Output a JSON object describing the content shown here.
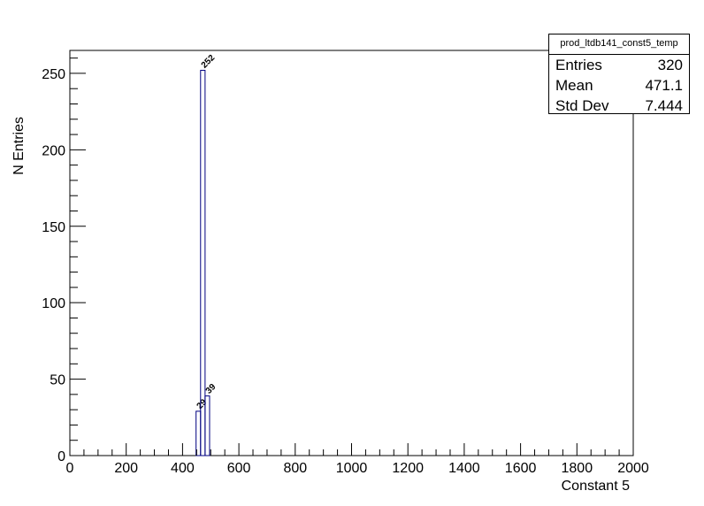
{
  "chart_data": {
    "type": "bar",
    "histogram": true,
    "bin_width": 16,
    "bins": [
      {
        "x_low": 448,
        "x_high": 464,
        "value": 29,
        "label": "29"
      },
      {
        "x_low": 464,
        "x_high": 480,
        "value": 252,
        "label": "252"
      },
      {
        "x_low": 480,
        "x_high": 496,
        "value": 39,
        "label": "39"
      }
    ],
    "xlabel": "Constant 5",
    "ylabel": "N Entries",
    "xlim": [
      0,
      2000
    ],
    "ylim": [
      0,
      265
    ],
    "x_ticks": [
      "0",
      "200",
      "400",
      "600",
      "800",
      "1000",
      "1200",
      "1400",
      "1600",
      "1800",
      "2000"
    ],
    "y_ticks": [
      "0",
      "50",
      "100",
      "150",
      "200",
      "250"
    ],
    "grid": false,
    "line_color": "#000080"
  },
  "stats": {
    "title": "prod_ltdb141_const5_temp",
    "rows": [
      {
        "label": "Entries",
        "value": "320"
      },
      {
        "label": "Mean",
        "value": "471.1"
      },
      {
        "label": "Std Dev",
        "value": "7.444"
      }
    ]
  }
}
